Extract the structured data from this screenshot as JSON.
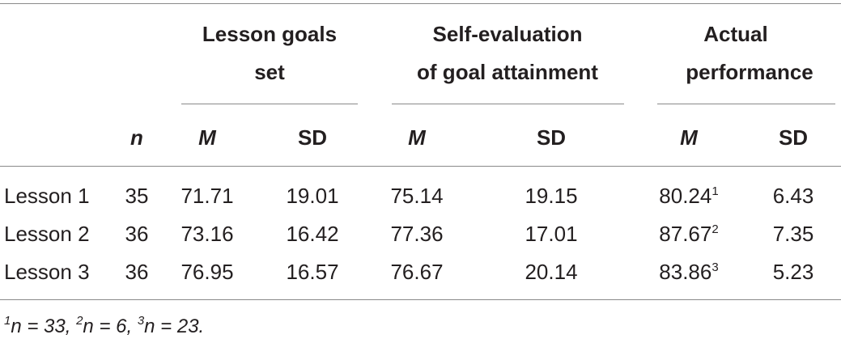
{
  "table": {
    "groups": [
      {
        "line1": "Lesson goals",
        "line2": "set"
      },
      {
        "line1": "Self-evaluation",
        "line2": "of goal attainment"
      },
      {
        "line1": "Actual",
        "line2": "performance"
      }
    ],
    "subheaders": {
      "n": "n",
      "m": "M",
      "sd": "SD"
    },
    "rows": [
      {
        "label": "Lesson 1",
        "n": "35",
        "goals_m": "71.71",
        "goals_sd": "19.01",
        "self_m": "75.14",
        "self_sd": "19.15",
        "actual_m": "80.24",
        "actual_m_sup": "1",
        "actual_sd": "6.43"
      },
      {
        "label": "Lesson 2",
        "n": "36",
        "goals_m": "73.16",
        "goals_sd": "16.42",
        "self_m": "77.36",
        "self_sd": "17.01",
        "actual_m": "87.67",
        "actual_m_sup": "2",
        "actual_sd": "7.35"
      },
      {
        "label": "Lesson 3",
        "n": "36",
        "goals_m": "76.95",
        "goals_sd": "16.57",
        "self_m": "76.67",
        "self_sd": "20.14",
        "actual_m": "83.86",
        "actual_m_sup": "3",
        "actual_sd": "5.23"
      }
    ]
  },
  "footnote": {
    "sup1": "1",
    "part1": "n = 33, ",
    "sup2": "2",
    "part2": "n = 6, ",
    "sup3": "3",
    "part3": "n = 23."
  }
}
